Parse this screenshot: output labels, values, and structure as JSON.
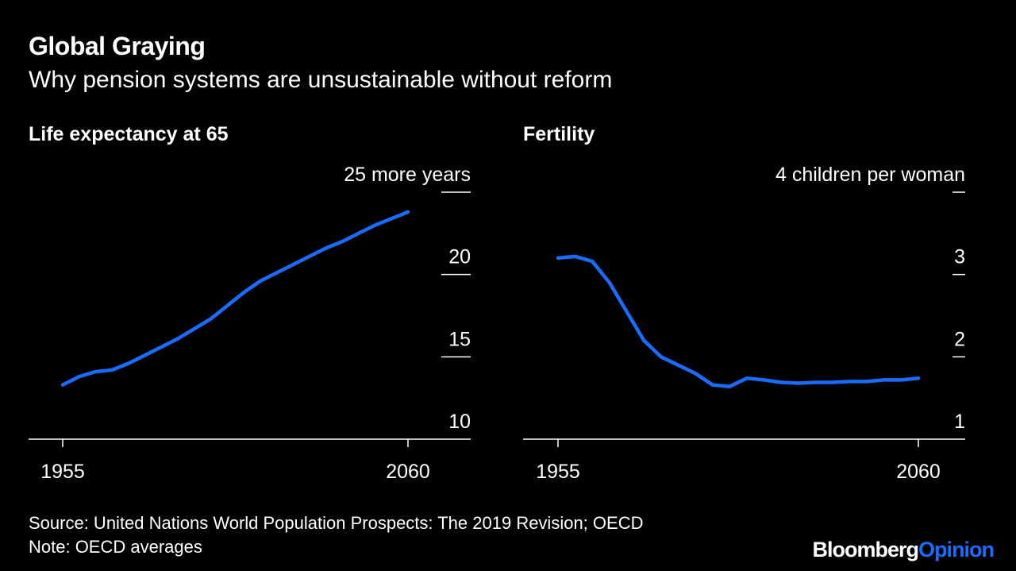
{
  "header": {
    "title": "Global Graying",
    "subtitle": "Why pension systems are unsustainable without reform"
  },
  "footer": {
    "source": "Source: United Nations World Population Prospects: The 2019 Revision; OECD",
    "note": "Note: OECD averages",
    "logo_primary": "Bloomberg",
    "logo_secondary": "Opinion"
  },
  "colors": {
    "line": "#1a6cff",
    "background": "#000000",
    "text": "#ffffff"
  },
  "chart_data": [
    {
      "type": "line",
      "title": "Life expectancy at 65",
      "y_unit_label": "25 more years",
      "ylim": [
        10,
        25
      ],
      "yticks": [
        "10",
        "15",
        "20"
      ],
      "xticks": [
        "1955",
        "2060"
      ],
      "xlim": [
        1955,
        2060
      ],
      "grid": false,
      "series": [
        {
          "x": [
            1955,
            1960,
            1965,
            1970,
            1975,
            1980,
            1985,
            1990,
            1995,
            2000,
            2005,
            2010,
            2015,
            2020,
            2025,
            2030,
            2035,
            2040,
            2045,
            2050,
            2055,
            2060
          ],
          "values": [
            13.3,
            13.8,
            14.1,
            14.2,
            14.6,
            15.1,
            15.6,
            16.1,
            16.7,
            17.3,
            18.1,
            18.9,
            19.6,
            20.1,
            20.6,
            21.1,
            21.6,
            22.0,
            22.5,
            23.0,
            23.4,
            23.8
          ]
        }
      ]
    },
    {
      "type": "line",
      "title": "Fertility",
      "y_unit_label": "4 children per woman",
      "ylim": [
        1,
        4
      ],
      "yticks": [
        "1",
        "2",
        "3"
      ],
      "xticks": [
        "1955",
        "2060"
      ],
      "xlim": [
        1955,
        2060
      ],
      "grid": false,
      "series": [
        {
          "x": [
            1955,
            1960,
            1965,
            1970,
            1975,
            1980,
            1985,
            1990,
            1995,
            2000,
            2005,
            2010,
            2015,
            2020,
            2025,
            2030,
            2035,
            2040,
            2045,
            2050,
            2055,
            2060
          ],
          "values": [
            3.2,
            3.22,
            3.16,
            2.9,
            2.55,
            2.2,
            2.0,
            1.9,
            1.8,
            1.66,
            1.64,
            1.74,
            1.72,
            1.69,
            1.68,
            1.69,
            1.69,
            1.7,
            1.7,
            1.72,
            1.72,
            1.74
          ]
        }
      ]
    }
  ]
}
